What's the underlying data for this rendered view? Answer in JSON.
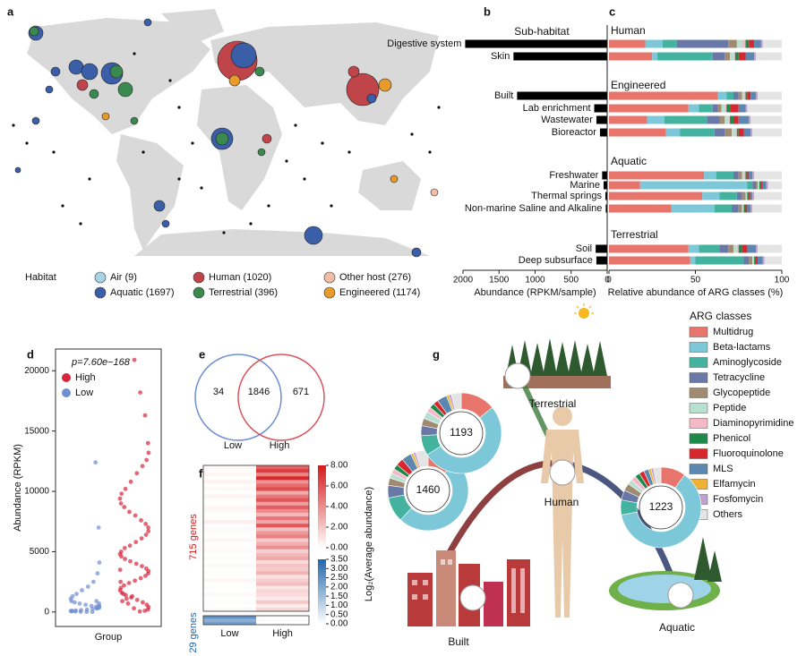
{
  "panels": [
    "a",
    "b",
    "c",
    "d",
    "e",
    "f",
    "g"
  ],
  "map": {
    "legend_title": "Habitat",
    "items": [
      {
        "label": "Air (9)",
        "color": "#a8d4e6"
      },
      {
        "label": "Human (1020)",
        "color": "#c0454a"
      },
      {
        "label": "Other host (276)",
        "color": "#f2bca8"
      },
      {
        "label": "Aquatic (1697)",
        "color": "#3a5fa8"
      },
      {
        "label": "Terrestrial (396)",
        "color": "#3a8a50"
      },
      {
        "label": "Engineered (1174)",
        "color": "#e89a2a"
      }
    ]
  },
  "venn": {
    "sets": [
      "Low",
      "High"
    ],
    "counts": [
      34,
      1846,
      671
    ]
  },
  "diagram": {
    "nodes": [
      "Terrestrial",
      "Human",
      "Built",
      "Aquatic"
    ]
  },
  "chart_data": [
    {
      "type": "hbar",
      "title": "Sub-habitat",
      "color": "#000000",
      "x_inverted": true,
      "xlabel": "Abundance (RPKM/sample)",
      "xlim": [
        0,
        2000
      ],
      "xticks": [
        2000,
        1500,
        1000,
        500,
        0
      ],
      "groups": [
        {
          "name": "Human",
          "categories": [
            "Digestive system",
            "Skin"
          ],
          "values": [
            1970,
            1300
          ]
        },
        {
          "name": "Engineered",
          "categories": [
            "Built",
            "Lab enrichment",
            "Wastewater",
            "Bioreactor"
          ],
          "values": [
            1250,
            180,
            150,
            100
          ]
        },
        {
          "name": "Aquatic",
          "categories": [
            "Freshwater",
            "Marine",
            "Thermal springs",
            "Non-marine Saline and Alkaline"
          ],
          "values": [
            70,
            50,
            25,
            20
          ]
        },
        {
          "name": "Terrestrial",
          "categories": [
            "Soil",
            "Deep subsurface"
          ],
          "values": [
            160,
            150
          ]
        }
      ]
    },
    {
      "type": "stacked_hbar",
      "xlabel": "Relative abundance of ARG classes (%)",
      "xlim": [
        0,
        100
      ],
      "xticks": [
        0,
        50,
        100
      ],
      "series": [
        {
          "name": "Multidrug",
          "color": "#e8756b",
          "values": [
            21,
            25,
            63,
            46,
            22,
            33,
            55,
            18,
            54,
            36,
            46,
            47
          ]
        },
        {
          "name": "Beta-lactams",
          "color": "#7cc8d8",
          "values": [
            10,
            3,
            5,
            6,
            10,
            8,
            7,
            62,
            10,
            25,
            6,
            3
          ]
        },
        {
          "name": "Aminoglycoside",
          "color": "#43b3a0",
          "values": [
            8,
            32,
            4,
            8,
            25,
            20,
            10,
            3,
            10,
            10,
            12,
            28
          ]
        },
        {
          "name": "Tetracycline",
          "color": "#6a78a8",
          "values": [
            30,
            7,
            3,
            3,
            7,
            6,
            3,
            2,
            3,
            4,
            5,
            3
          ]
        },
        {
          "name": "Glycopeptide",
          "color": "#a08a70",
          "values": [
            5,
            3,
            2,
            2,
            3,
            4,
            2,
            1,
            2,
            2,
            3,
            2
          ]
        },
        {
          "name": "Peptide",
          "color": "#b8e0d0",
          "values": [
            3,
            2,
            1,
            2,
            2,
            2,
            1,
            1,
            1,
            1,
            2,
            1
          ]
        },
        {
          "name": "Diaminopyrimidine",
          "color": "#f4b8c8",
          "values": [
            2,
            1,
            1,
            1,
            1,
            1,
            1,
            0,
            0,
            0,
            1,
            0
          ]
        },
        {
          "name": "Phenicol",
          "color": "#1e8a4a",
          "values": [
            2,
            2,
            1,
            2,
            2,
            1,
            1,
            1,
            1,
            1,
            2,
            1
          ]
        },
        {
          "name": "Fluoroquinolone",
          "color": "#d7262e",
          "values": [
            3,
            4,
            2,
            5,
            3,
            3,
            1,
            1,
            1,
            1,
            3,
            1
          ]
        },
        {
          "name": "MLS",
          "color": "#5a88b0",
          "values": [
            4,
            5,
            3,
            4,
            6,
            4,
            2,
            2,
            1,
            2,
            5,
            3
          ]
        },
        {
          "name": "Elfamycin",
          "color": "#f0b030",
          "values": [
            0,
            0,
            0,
            0,
            0,
            0,
            0,
            0,
            0,
            0,
            0,
            0
          ]
        },
        {
          "name": "Fosfomycin",
          "color": "#c0a0d0",
          "values": [
            1,
            1,
            1,
            1,
            1,
            1,
            1,
            1,
            1,
            1,
            1,
            1
          ]
        },
        {
          "name": "Others",
          "color": "#e4e4e4",
          "values": [
            11,
            15,
            14,
            20,
            18,
            17,
            16,
            8,
            16,
            17,
            14,
            10
          ]
        }
      ]
    },
    {
      "type": "strip",
      "ylabel": "Abundance (RPKM)",
      "xlabel": "Group",
      "annotation": "p=7.60e−168",
      "ylim": [
        -1200,
        21800
      ],
      "yticks": [
        0,
        5000,
        10000,
        15000,
        20000
      ],
      "series": [
        {
          "name": "High",
          "color": "#d7263d",
          "values": [
            20900,
            18200,
            16300,
            14000,
            13200,
            12600,
            12100,
            11500,
            10800,
            10200,
            9800,
            9400,
            9000,
            8700,
            8300,
            8000,
            7600,
            7300,
            7000,
            6700,
            6400,
            6100,
            5800,
            5500,
            5300,
            5000,
            4800,
            4600,
            4400,
            4200,
            4000,
            3800,
            3600,
            3400,
            3200,
            3000,
            2800,
            2600,
            2400,
            2200,
            2000,
            1800,
            1600,
            1400,
            1200,
            1000,
            800,
            600,
            400,
            200,
            100,
            50,
            300,
            700,
            1500,
            2500,
            3500,
            900,
            1100,
            1300
          ]
        },
        {
          "name": "Low",
          "color": "#6f8fd0",
          "values": [
            12400,
            7000,
            4100,
            3200,
            2500,
            2100,
            1800,
            1500,
            1300,
            1100,
            900,
            800,
            700,
            600,
            500,
            450,
            400,
            350,
            300,
            250,
            200,
            150,
            120,
            100,
            80,
            60,
            40,
            20,
            10,
            5,
            300,
            500,
            700,
            900
          ]
        }
      ]
    },
    {
      "type": "heatmap",
      "columns": [
        "Low",
        "High"
      ],
      "colorbar_label": "Log₂(Average abundance)",
      "groups": [
        {
          "name": "715 genes",
          "color": "#d7191c",
          "lim": [
            0,
            8
          ],
          "ticks": [
            {
              "value": 0,
              "label": "0.00"
            },
            {
              "value": 2,
              "label": "2.00"
            },
            {
              "value": 4,
              "label": "4.00"
            },
            {
              "value": 6,
              "label": "6.00"
            },
            {
              "value": 8,
              "label": "8.00"
            }
          ],
          "rows": [
            [
              0.2,
              5.5
            ],
            [
              0.1,
              6.8
            ],
            [
              0.3,
              4.2
            ],
            [
              0,
              7.5
            ],
            [
              0.5,
              3.8
            ],
            [
              0.1,
              5.1
            ],
            [
              0.2,
              6.2
            ],
            [
              0,
              2.9
            ],
            [
              0.4,
              4.7
            ],
            [
              0.1,
              6.0
            ],
            [
              0,
              3.3
            ],
            [
              0.3,
              5.6
            ],
            [
              0.2,
              4.0
            ],
            [
              0,
              2.5
            ],
            [
              0.1,
              4.8
            ],
            [
              0.6,
              3.1
            ],
            [
              0,
              5.9
            ],
            [
              0.2,
              2.2
            ],
            [
              0.1,
              3.6
            ],
            [
              0,
              4.4
            ],
            [
              0.3,
              1.9
            ],
            [
              0,
              2.8
            ],
            [
              0.1,
              3.9
            ],
            [
              0.2,
              1.6
            ],
            [
              0,
              2.4
            ],
            [
              0.1,
              3.0
            ],
            [
              0,
              1.3
            ],
            [
              0.2,
              2.1
            ],
            [
              0,
              1.8
            ],
            [
              0.1,
              2.6
            ],
            [
              0,
              1.1
            ],
            [
              0.3,
              1.7
            ],
            [
              0,
              2.3
            ],
            [
              0.1,
              0.9
            ],
            [
              0,
              1.5
            ],
            [
              0.2,
              1.2
            ],
            [
              0,
              0.8
            ],
            [
              0.1,
              1.9
            ],
            [
              0,
              0.6
            ],
            [
              0.2,
              1.4
            ]
          ]
        },
        {
          "name": "29 genes",
          "color": "#2166ac",
          "lim": [
            0,
            3.5
          ],
          "ticks": [
            {
              "value": 0,
              "label": "0.00"
            },
            {
              "value": 0.5,
              "label": "0.50"
            },
            {
              "value": 1,
              "label": "1.00"
            },
            {
              "value": 1.5,
              "label": "1.50"
            },
            {
              "value": 2,
              "label": "2.00"
            },
            {
              "value": 2.5,
              "label": "2.50"
            },
            {
              "value": 3,
              "label": "3.00"
            },
            {
              "value": 3.5,
              "label": "3.50"
            }
          ],
          "rows": [
            [
              2.5,
              0
            ],
            [
              1.8,
              0.1
            ],
            [
              2.2,
              0
            ]
          ]
        }
      ]
    },
    {
      "type": "donut",
      "legend_title": "ARG classes",
      "donuts": [
        {
          "label": 1460,
          "values": [
            12,
            50,
            10,
            5,
            3,
            2,
            2,
            2,
            3,
            4,
            1,
            1,
            5
          ]
        },
        {
          "label": 1193,
          "values": [
            14,
            52,
            8,
            4,
            3,
            3,
            2,
            2,
            2,
            4,
            1,
            1,
            4
          ]
        },
        {
          "label": 1223,
          "values": [
            10,
            62,
            6,
            4,
            3,
            2,
            2,
            2,
            2,
            2,
            1,
            1,
            3
          ]
        }
      ]
    }
  ]
}
